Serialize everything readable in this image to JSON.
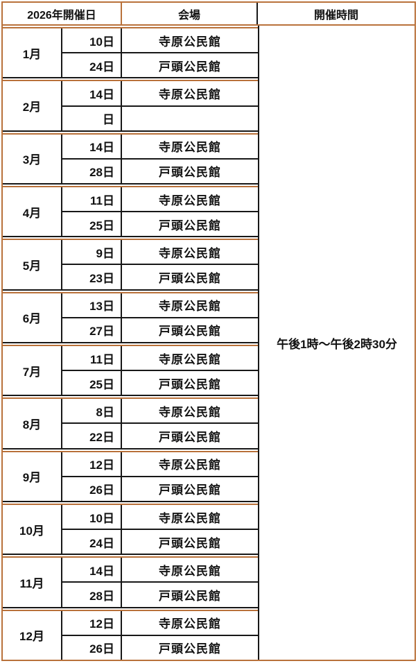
{
  "header": {
    "date_column": "2026年開催日",
    "venue_column": "会場",
    "time_column": "開催時間"
  },
  "time_cell": "午後1時～午後2時30分",
  "months": [
    {
      "month": "1月",
      "sessions": [
        {
          "day": "10日",
          "venue": "寺原公民館"
        },
        {
          "day": "24日",
          "venue": "戸頭公民館"
        }
      ]
    },
    {
      "month": "2月",
      "sessions": [
        {
          "day": "14日",
          "venue": "寺原公民館"
        },
        {
          "day": "日",
          "venue": ""
        }
      ]
    },
    {
      "month": "3月",
      "sessions": [
        {
          "day": "14日",
          "venue": "寺原公民館"
        },
        {
          "day": "28日",
          "venue": "戸頭公民館"
        }
      ]
    },
    {
      "month": "4月",
      "sessions": [
        {
          "day": "11日",
          "venue": "寺原公民館"
        },
        {
          "day": "25日",
          "venue": "戸頭公民館"
        }
      ]
    },
    {
      "month": "5月",
      "sessions": [
        {
          "day": "9日",
          "venue": "寺原公民館"
        },
        {
          "day": "23日",
          "venue": "戸頭公民館"
        }
      ]
    },
    {
      "month": "6月",
      "sessions": [
        {
          "day": "13日",
          "venue": "寺原公民館"
        },
        {
          "day": "27日",
          "venue": "戸頭公民館"
        }
      ]
    },
    {
      "month": "7月",
      "sessions": [
        {
          "day": "11日",
          "venue": "寺原公民館"
        },
        {
          "day": "25日",
          "venue": "戸頭公民館"
        }
      ]
    },
    {
      "month": "8月",
      "sessions": [
        {
          "day": "8日",
          "venue": "寺原公民館"
        },
        {
          "day": "22日",
          "venue": "戸頭公民館"
        }
      ]
    },
    {
      "month": "9月",
      "sessions": [
        {
          "day": "12日",
          "venue": "寺原公民館"
        },
        {
          "day": "26日",
          "venue": "戸頭公民館"
        }
      ]
    },
    {
      "month": "10月",
      "sessions": [
        {
          "day": "10日",
          "venue": "寺原公民館"
        },
        {
          "day": "24日",
          "venue": "戸頭公民館"
        }
      ]
    },
    {
      "month": "11月",
      "sessions": [
        {
          "day": "14日",
          "venue": "寺原公民館"
        },
        {
          "day": "28日",
          "venue": "戸頭公民館"
        }
      ]
    },
    {
      "month": "12月",
      "sessions": [
        {
          "day": "12日",
          "venue": "寺原公民館"
        },
        {
          "day": "26日",
          "venue": "戸頭公民館"
        }
      ]
    }
  ],
  "colors": {
    "border_accent": "#B9713A",
    "border_grid": "#171717",
    "text": "#111111",
    "background": "#FFFFFF"
  }
}
